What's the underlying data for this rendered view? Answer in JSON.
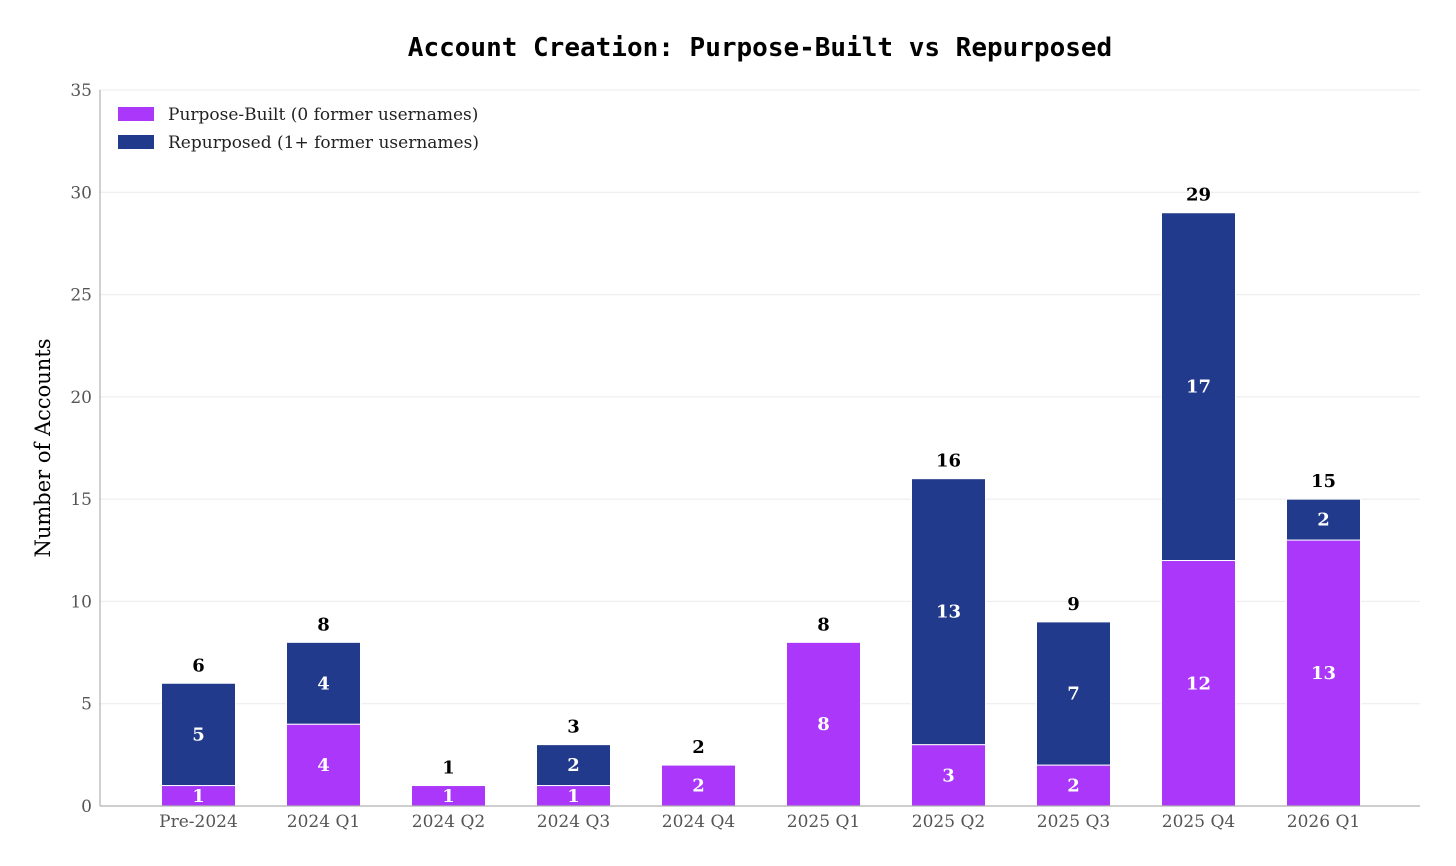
{
  "chart_data": {
    "type": "bar",
    "stacked": true,
    "title": "Account Creation: Purpose-Built vs Repurposed",
    "xlabel": "",
    "ylabel": "Number of Accounts",
    "ylim": [
      0,
      35
    ],
    "yticks": [
      0,
      5,
      10,
      15,
      20,
      25,
      30,
      35
    ],
    "grid": true,
    "legend_position": "top-left",
    "categories": [
      "Pre-2024",
      "2024 Q1",
      "2024 Q2",
      "2024 Q3",
      "2024 Q4",
      "2025 Q1",
      "2025 Q2",
      "2025 Q3",
      "2025 Q4",
      "2026 Q1"
    ],
    "series": [
      {
        "name": "Purpose-Built (0 former usernames)",
        "color": "#AA37F9",
        "values": [
          1,
          4,
          1,
          1,
          2,
          8,
          3,
          2,
          12,
          13
        ]
      },
      {
        "name": "Repurposed (1+ former usernames)",
        "color": "#213A8B",
        "values": [
          5,
          4,
          0,
          2,
          0,
          0,
          13,
          7,
          17,
          2
        ]
      }
    ],
    "totals": [
      6,
      8,
      1,
      3,
      2,
      8,
      16,
      9,
      29,
      15
    ]
  }
}
